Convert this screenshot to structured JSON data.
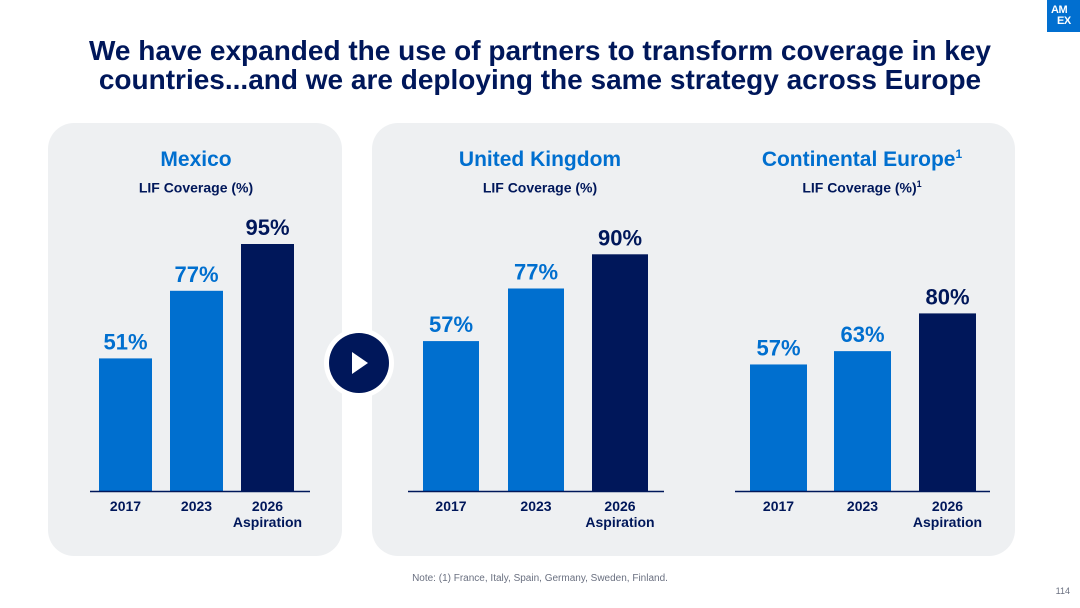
{
  "logo": {
    "line1": "AM",
    "line2": "EX"
  },
  "title": {
    "line1": "We have expanded the use of partners to transform coverage in key",
    "line2": "countries...and we are deploying the same strategy across Europe"
  },
  "colors": {
    "light_bar": "#006fcf",
    "dark_bar": "#00175a",
    "panel": "#eef0f2",
    "heading": "#006fcf",
    "text": "#00175a"
  },
  "icons": {
    "play": "play-icon"
  },
  "chart_data": [
    {
      "type": "bar",
      "title": "Mexico",
      "title_sup": "",
      "subtitle": "LIF Coverage (%)",
      "subtitle_sup": "",
      "categories": [
        "2017",
        "2023",
        "2026"
      ],
      "category_sublabels": [
        "",
        "",
        "Aspiration"
      ],
      "values": [
        51,
        77,
        95
      ],
      "labels": [
        "51%",
        "77%",
        "95%"
      ],
      "ylim": [
        0,
        100
      ]
    },
    {
      "type": "bar",
      "title": "United Kingdom",
      "title_sup": "",
      "subtitle": "LIF Coverage (%)",
      "subtitle_sup": "",
      "categories": [
        "2017",
        "2023",
        "2026"
      ],
      "category_sublabels": [
        "",
        "",
        "Aspiration"
      ],
      "values": [
        57,
        77,
        90
      ],
      "labels": [
        "57%",
        "77%",
        "90%"
      ],
      "ylim": [
        0,
        100
      ]
    },
    {
      "type": "bar",
      "title": "Continental Europe",
      "title_sup": "1",
      "subtitle": "LIF Coverage (%)",
      "subtitle_sup": "1",
      "categories": [
        "2017",
        "2023",
        "2026"
      ],
      "category_sublabels": [
        "",
        "",
        "Aspiration"
      ],
      "values": [
        57,
        63,
        80
      ],
      "labels": [
        "57%",
        "63%",
        "80%"
      ],
      "ylim": [
        0,
        100
      ]
    }
  ],
  "note": "Note: (1) France, Italy, Spain, Germany, Sweden, Finland.",
  "page_number": "114"
}
